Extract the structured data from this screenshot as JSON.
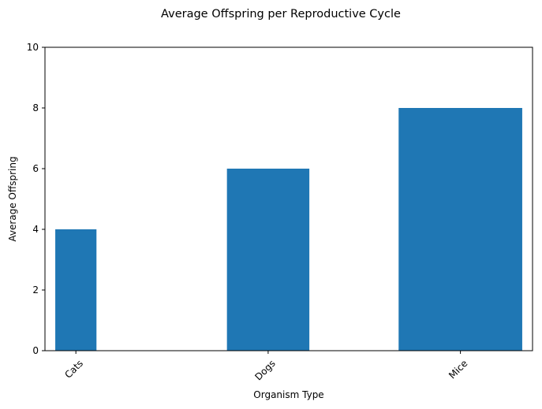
{
  "chart_data": {
    "type": "bar",
    "title": "Average Offspring per Reproductive Cycle",
    "xlabel": "Organism Type",
    "ylabel": "Average Offspring",
    "categories": [
      "Cats",
      "Dogs",
      "Mice"
    ],
    "values": [
      4,
      6,
      8
    ],
    "x_positions": [
      0.6,
      2,
      3.4
    ],
    "bar_widths": [
      0.3,
      0.6,
      0.9
    ],
    "xlim": [
      0.375,
      3.925
    ],
    "ylim": [
      0,
      10
    ],
    "yticks": [
      0,
      2,
      4,
      6,
      8,
      10
    ],
    "ytick_labels": [
      "0",
      "2",
      "4",
      "6",
      "8",
      "10"
    ],
    "xtick_rotation_deg": 45,
    "grid": false,
    "legend": "none",
    "colors": {
      "bar": "#1f77b4",
      "axes": "#000000",
      "background": "#ffffff"
    }
  }
}
